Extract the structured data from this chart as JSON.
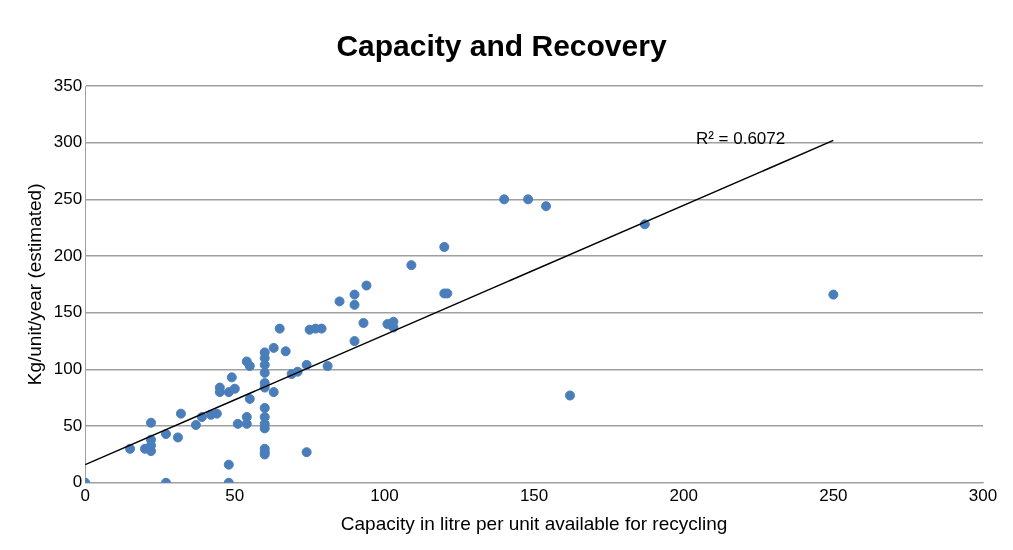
{
  "chart_data": {
    "type": "scatter",
    "title": "Capacity and Recovery",
    "xlabel": "Capacity in litre per unit available for recycling",
    "ylabel": "Kg/unit/year (estimated)",
    "xlim": [
      0,
      300
    ],
    "xticks": [
      0,
      50,
      100,
      150,
      200,
      250,
      300
    ],
    "ylim": [
      0,
      350
    ],
    "yticks": [
      0,
      50,
      100,
      150,
      200,
      250,
      300,
      350
    ],
    "grid": "y",
    "legend": false,
    "annotations": [
      "R² = 0.6072"
    ],
    "series": [
      {
        "marker": "circle",
        "color": "#4a7ebb",
        "x": [
          0,
          15,
          20,
          22,
          22,
          22,
          22,
          27,
          27,
          31,
          32,
          37,
          39,
          42,
          44,
          45,
          45,
          48,
          48,
          48,
          49,
          50,
          51,
          54,
          54,
          54,
          55,
          55,
          60,
          60,
          60,
          60,
          60,
          60,
          60,
          60,
          60,
          60,
          60,
          60,
          60,
          63,
          63,
          65,
          67,
          69,
          71,
          74,
          74,
          75,
          77,
          79,
          81,
          85,
          90,
          90,
          90,
          93,
          94,
          101,
          103,
          103,
          109,
          120,
          120,
          121,
          140,
          148,
          154,
          162,
          187,
          250
        ],
        "values": [
          0,
          30,
          30,
          28,
          33,
          38,
          53,
          43,
          0,
          40,
          61,
          51,
          58,
          60,
          61,
          84,
          80,
          0,
          16,
          80,
          93,
          83,
          52,
          107,
          52,
          58,
          103,
          74,
          115,
          110,
          104,
          97,
          88,
          84,
          66,
          58,
          52,
          48,
          30,
          27,
          25,
          119,
          80,
          136,
          116,
          96,
          98,
          104,
          27,
          135,
          136,
          136,
          103,
          160,
          166,
          157,
          125,
          141,
          174,
          140,
          142,
          137,
          192,
          208,
          167,
          167,
          250,
          250,
          244,
          77,
          228,
          166
        ]
      },
      {
        "type": "line",
        "color": "#000000",
        "x": [
          0,
          250
        ],
        "values": [
          16,
          302
        ]
      }
    ]
  }
}
